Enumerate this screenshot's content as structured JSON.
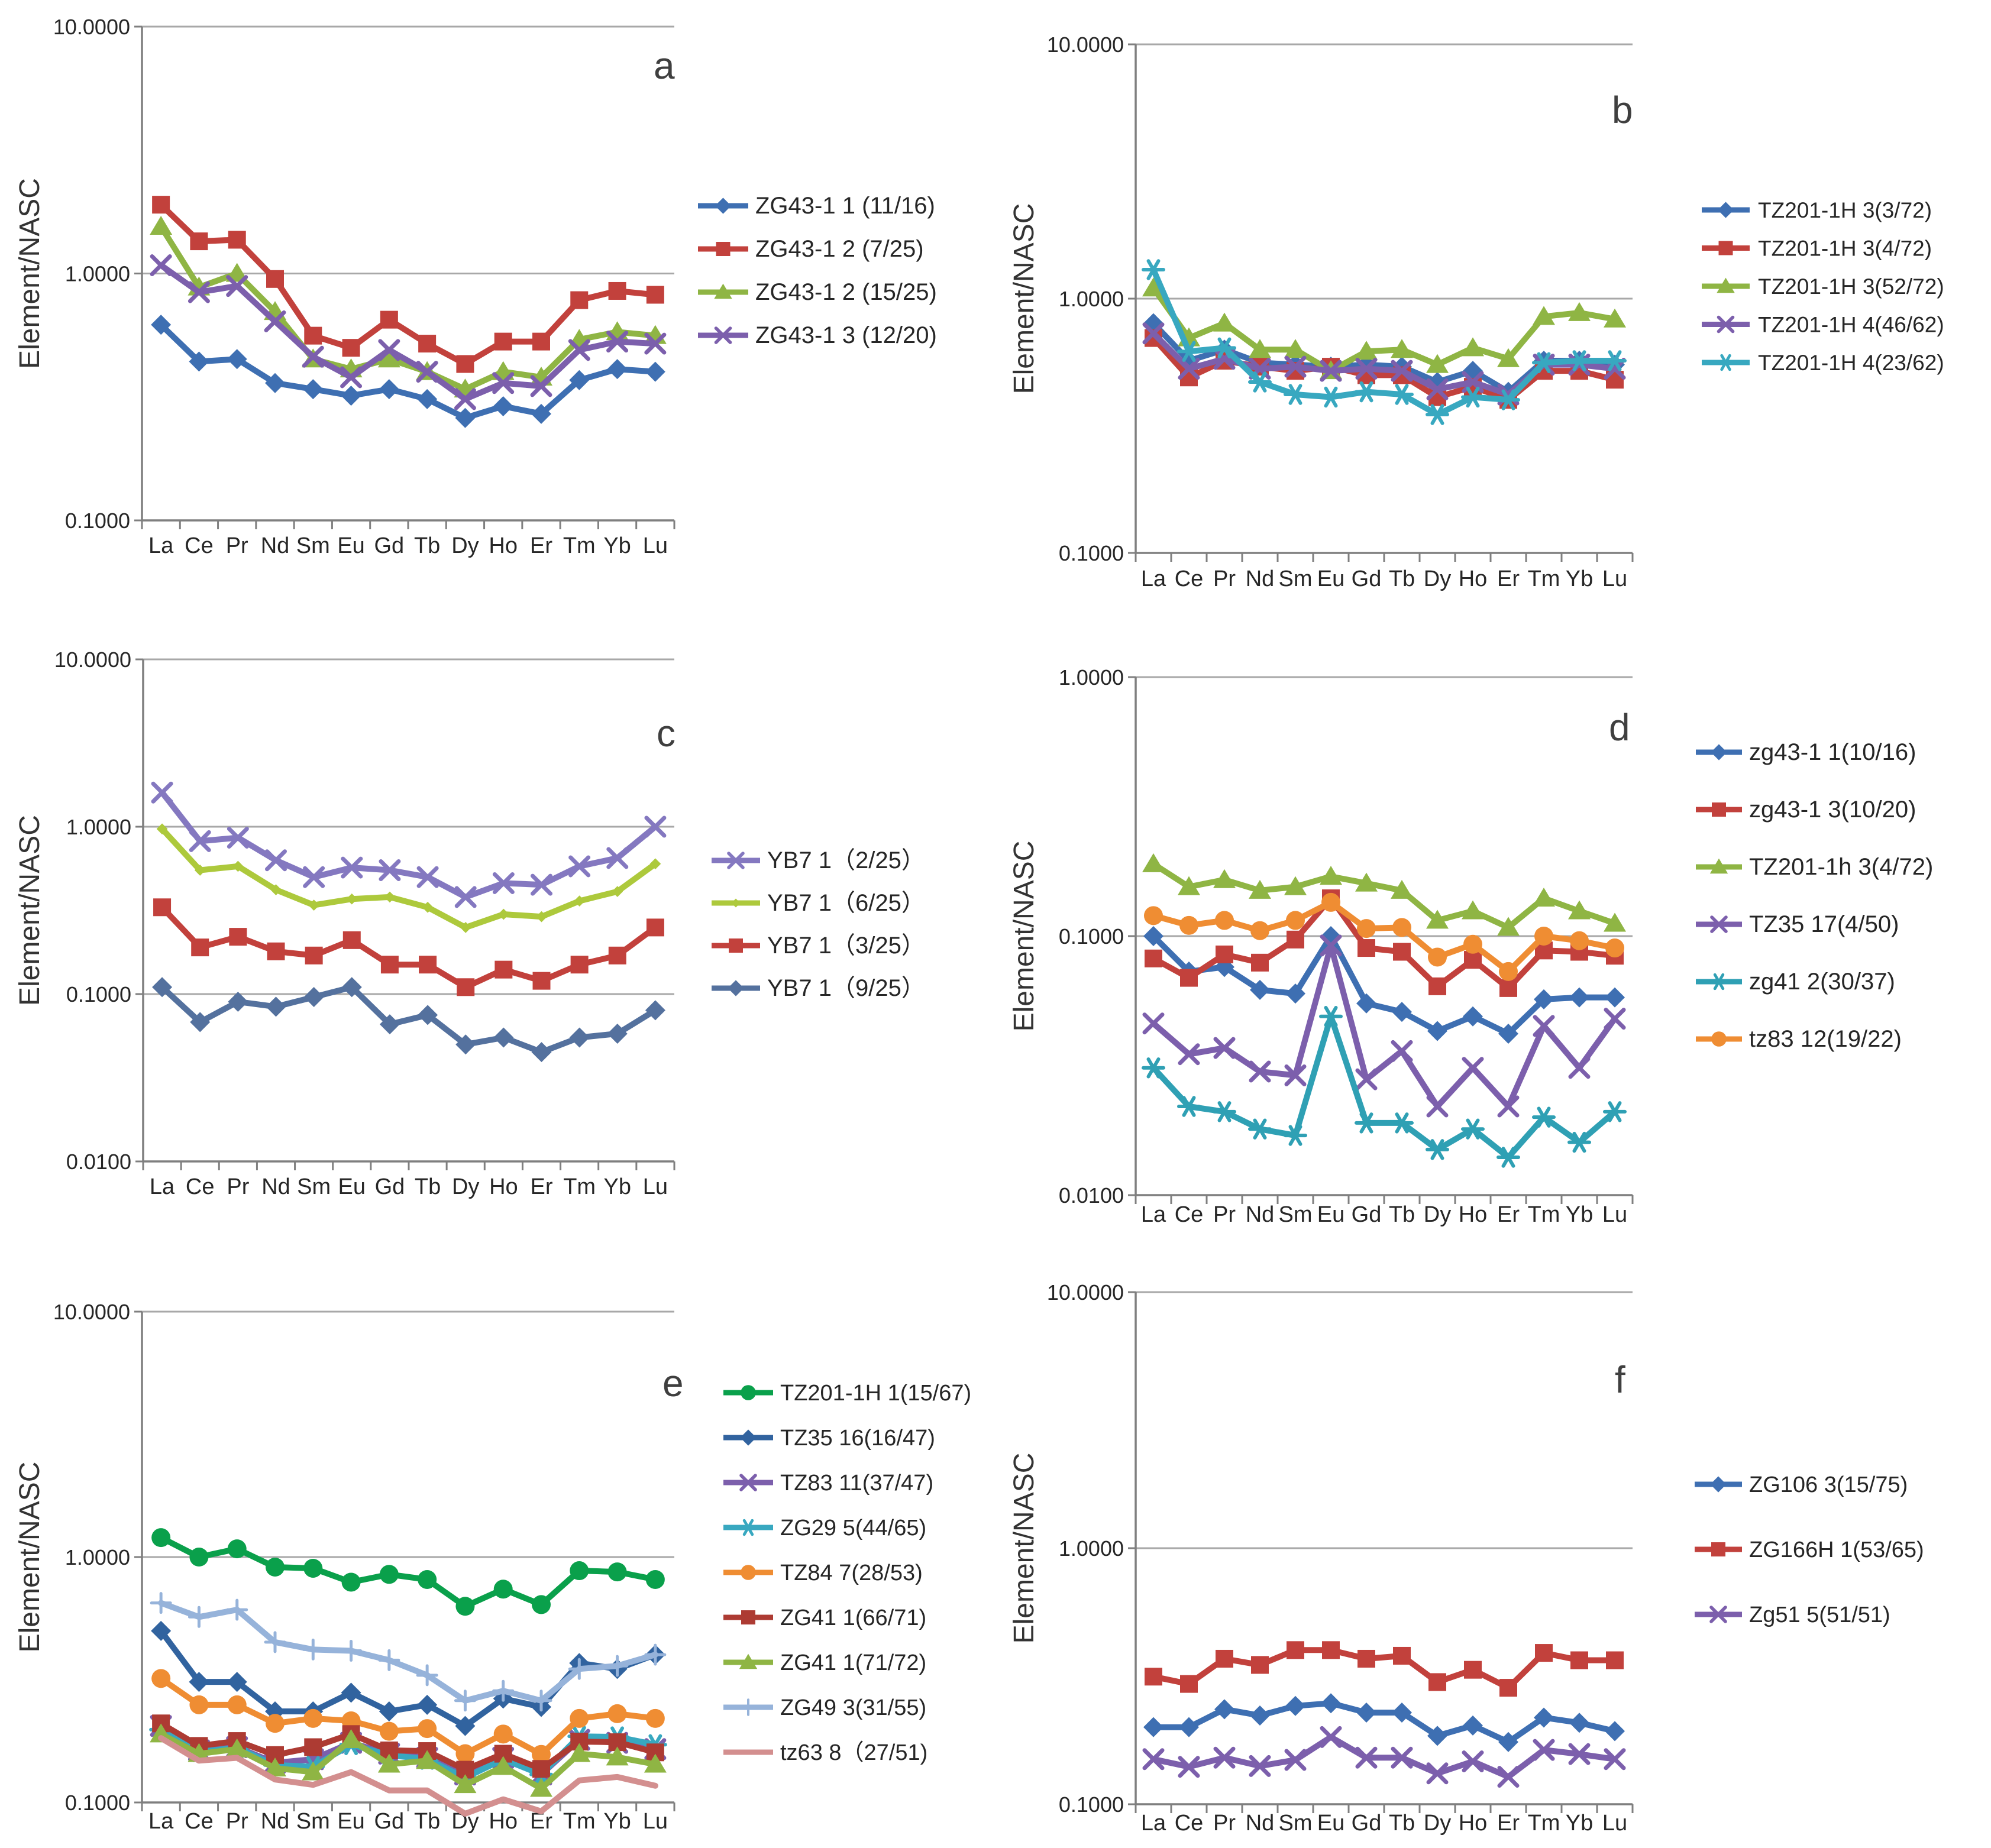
{
  "figure": {
    "background": "#ffffff",
    "ylabel": "Element/NASC",
    "x_categories": [
      "La",
      "Ce",
      "Pr",
      "Nd",
      "Sm",
      "Eu",
      "Gd",
      "Tb",
      "Dy",
      "Ho",
      "Er",
      "Tm",
      "Yb",
      "Lu"
    ]
  },
  "chart_data": [
    {
      "id": "a",
      "type": "line",
      "panel_label": "a",
      "ylabel": "Element/NASC",
      "xlabel": "",
      "yscale": "log",
      "ylim": [
        0.1,
        10
      ],
      "grid": "horizontal-decades",
      "legend_position": "right",
      "x_categories": [
        "La",
        "Ce",
        "Pr",
        "Nd",
        "Sm",
        "Eu",
        "Gd",
        "Tb",
        "Dy",
        "Ho",
        "Er",
        "Tm",
        "Yb",
        "Lu"
      ],
      "yticks": [
        {
          "value": 10,
          "label": "10.0000"
        },
        {
          "value": 1,
          "label": "1.0000"
        },
        {
          "value": 0.1,
          "label": "0.1000"
        }
      ],
      "series": [
        {
          "name": "ZG43-1  1 (11/16)",
          "color": "#3E6FB2",
          "marker": "diamond",
          "values": [
            0.62,
            0.44,
            0.45,
            0.36,
            0.34,
            0.32,
            0.34,
            0.31,
            0.26,
            0.29,
            0.27,
            0.37,
            0.41,
            0.4
          ]
        },
        {
          "name": "ZG43-1  2 (7/25)",
          "color": "#C2413C",
          "marker": "square",
          "values": [
            1.9,
            1.35,
            1.37,
            0.95,
            0.56,
            0.5,
            0.65,
            0.52,
            0.43,
            0.53,
            0.53,
            0.78,
            0.85,
            0.82
          ]
        },
        {
          "name": "ZG43-1  2 (15/25)",
          "color": "#8FB544",
          "marker": "triangle",
          "values": [
            1.55,
            0.88,
            1.0,
            0.7,
            0.45,
            0.41,
            0.45,
            0.4,
            0.34,
            0.4,
            0.38,
            0.54,
            0.58,
            0.56
          ]
        },
        {
          "name": "ZG43-1  3 (12/20)",
          "color": "#7C5FAC",
          "marker": "x",
          "values": [
            1.08,
            0.84,
            0.89,
            0.64,
            0.46,
            0.38,
            0.49,
            0.4,
            0.31,
            0.36,
            0.35,
            0.49,
            0.53,
            0.52
          ]
        }
      ]
    },
    {
      "id": "b",
      "type": "line",
      "panel_label": "b",
      "ylabel": "Element/NASC",
      "xlabel": "",
      "yscale": "log",
      "ylim": [
        0.1,
        10
      ],
      "grid": "horizontal-decades",
      "legend_position": "right",
      "x_categories": [
        "La",
        "Ce",
        "Pr",
        "Nd",
        "Sm",
        "Eu",
        "Gd",
        "Tb",
        "Dy",
        "Ho",
        "Er",
        "Tm",
        "Yb",
        "Lu"
      ],
      "yticks": [
        {
          "value": 10,
          "label": "10.0000"
        },
        {
          "value": 1,
          "label": "1.0000"
        },
        {
          "value": 0.1,
          "label": "0.1000"
        }
      ],
      "series": [
        {
          "name": "TZ201-1H 3(3/72)",
          "color": "#3E6FB2",
          "marker": "diamond",
          "values": [
            0.8,
            0.57,
            0.63,
            0.56,
            0.55,
            0.54,
            0.55,
            0.54,
            0.47,
            0.52,
            0.43,
            0.57,
            0.57,
            0.55
          ]
        },
        {
          "name": "TZ201-1H 3(4/72)",
          "color": "#C2413C",
          "marker": "square",
          "values": [
            0.7,
            0.49,
            0.57,
            0.54,
            0.52,
            0.54,
            0.5,
            0.5,
            0.41,
            0.45,
            0.4,
            0.52,
            0.52,
            0.48
          ]
        },
        {
          "name": "TZ201-1H 3(52/72)",
          "color": "#8FB544",
          "marker": "triangle",
          "values": [
            1.1,
            0.7,
            0.8,
            0.63,
            0.63,
            0.52,
            0.62,
            0.63,
            0.55,
            0.64,
            0.58,
            0.85,
            0.88,
            0.83
          ]
        },
        {
          "name": "TZ201-1H 4(46/62)",
          "color": "#7C5FAC",
          "marker": "x",
          "values": [
            0.73,
            0.53,
            0.58,
            0.53,
            0.54,
            0.52,
            0.53,
            0.52,
            0.44,
            0.47,
            0.42,
            0.55,
            0.55,
            0.53
          ]
        },
        {
          "name": "TZ201-1H 4(23/62)",
          "color": "#38A8C0",
          "marker": "asterisk",
          "values": [
            1.3,
            0.62,
            0.64,
            0.47,
            0.42,
            0.41,
            0.43,
            0.42,
            0.35,
            0.41,
            0.4,
            0.56,
            0.57,
            0.57
          ]
        }
      ]
    },
    {
      "id": "c",
      "type": "line",
      "panel_label": "c",
      "ylabel": "Element/NASC",
      "xlabel": "",
      "yscale": "log",
      "ylim": [
        0.01,
        10
      ],
      "grid": "horizontal-decades",
      "legend_position": "right",
      "x_categories": [
        "La",
        "Ce",
        "Pr",
        "Nd",
        "Sm",
        "Eu",
        "Gd",
        "Tb",
        "Dy",
        "Ho",
        "Er",
        "Tm",
        "Yb",
        "Lu"
      ],
      "yticks": [
        {
          "value": 10,
          "label": "10.0000"
        },
        {
          "value": 1,
          "label": "1.0000"
        },
        {
          "value": 0.1,
          "label": "0.1000"
        },
        {
          "value": 0.01,
          "label": "0.0100"
        }
      ],
      "series": [
        {
          "name": "YB7 1（2/25）",
          "color": "#8478C0",
          "marker": "x",
          "values": [
            1.6,
            0.82,
            0.86,
            0.63,
            0.5,
            0.57,
            0.55,
            0.5,
            0.38,
            0.46,
            0.45,
            0.58,
            0.65,
            1.0
          ]
        },
        {
          "name": "YB7 1（6/25）",
          "color": "#ADC93C",
          "marker": "diamond",
          "marker_scale": 0.55,
          "values": [
            0.97,
            0.55,
            0.58,
            0.42,
            0.34,
            0.37,
            0.38,
            0.33,
            0.25,
            0.3,
            0.29,
            0.36,
            0.41,
            0.6
          ]
        },
        {
          "name": "YB7 1（3/25）",
          "color": "#C2413C",
          "marker": "square",
          "values": [
            0.33,
            0.19,
            0.22,
            0.18,
            0.17,
            0.21,
            0.15,
            0.15,
            0.11,
            0.14,
            0.12,
            0.15,
            0.17,
            0.25
          ]
        },
        {
          "name": "YB7 1（9/25）",
          "color": "#54719E",
          "marker": "diamond",
          "values": [
            0.11,
            0.068,
            0.09,
            0.084,
            0.096,
            0.11,
            0.066,
            0.075,
            0.05,
            0.055,
            0.045,
            0.055,
            0.058,
            0.08
          ]
        }
      ]
    },
    {
      "id": "d",
      "type": "line",
      "panel_label": "d",
      "ylabel": "Element/NASC",
      "xlabel": "",
      "yscale": "log",
      "ylim": [
        0.01,
        1
      ],
      "grid": "horizontal-decades",
      "legend_position": "right",
      "x_categories": [
        "La",
        "Ce",
        "Pr",
        "Nd",
        "Sm",
        "Eu",
        "Gd",
        "Tb",
        "Dy",
        "Ho",
        "Er",
        "Tm",
        "Yb",
        "Lu"
      ],
      "yticks": [
        {
          "value": 1,
          "label": "1.0000"
        },
        {
          "value": 0.1,
          "label": "0.1000"
        },
        {
          "value": 0.01,
          "label": "0.0100"
        }
      ],
      "series": [
        {
          "name": "zg43-1 1(10/16)",
          "color": "#3E6FB2",
          "marker": "diamond",
          "values": [
            0.1,
            0.073,
            0.076,
            0.062,
            0.06,
            0.1,
            0.055,
            0.051,
            0.043,
            0.049,
            0.042,
            0.057,
            0.058,
            0.058
          ]
        },
        {
          "name": "zg43-1 3(10/20)",
          "color": "#C2413C",
          "marker": "square",
          "values": [
            0.082,
            0.069,
            0.085,
            0.079,
            0.097,
            0.14,
            0.09,
            0.087,
            0.064,
            0.081,
            0.063,
            0.088,
            0.087,
            0.084
          ]
        },
        {
          "name": "TZ201-1h 3(4/72)",
          "color": "#8FB544",
          "marker": "triangle",
          "values": [
            0.19,
            0.155,
            0.165,
            0.15,
            0.155,
            0.17,
            0.16,
            0.15,
            0.115,
            0.125,
            0.108,
            0.14,
            0.125,
            0.112
          ]
        },
        {
          "name": "TZ35 17(4/50)",
          "color": "#7C5FAC",
          "marker": "x",
          "values": [
            0.046,
            0.035,
            0.037,
            0.03,
            0.029,
            0.092,
            0.028,
            0.036,
            0.022,
            0.031,
            0.022,
            0.045,
            0.031,
            0.048
          ]
        },
        {
          "name": "zg41 2(30/37)",
          "color": "#2FA0B4",
          "marker": "asterisk",
          "values": [
            0.031,
            0.022,
            0.021,
            0.018,
            0.017,
            0.049,
            0.019,
            0.019,
            0.015,
            0.018,
            0.014,
            0.02,
            0.016,
            0.021
          ]
        },
        {
          "name": "tz83 12(19/22)",
          "color": "#EF8D33",
          "marker": "circle",
          "values": [
            0.12,
            0.11,
            0.115,
            0.105,
            0.115,
            0.135,
            0.107,
            0.108,
            0.083,
            0.093,
            0.073,
            0.1,
            0.096,
            0.09
          ]
        }
      ]
    },
    {
      "id": "e",
      "type": "line",
      "panel_label": "e",
      "ylabel": "Element/NASC",
      "xlabel": "",
      "yscale": "log",
      "ylim": [
        0.1,
        10
      ],
      "grid": "horizontal-decades",
      "legend_position": "right",
      "x_categories": [
        "La",
        "Ce",
        "Pr",
        "Nd",
        "Sm",
        "Eu",
        "Gd",
        "Tb",
        "Dy",
        "Ho",
        "Er",
        "Tm",
        "Yb",
        "Lu"
      ],
      "yticks": [
        {
          "value": 10,
          "label": "10.0000"
        },
        {
          "value": 1,
          "label": "1.0000"
        },
        {
          "value": 0.1,
          "label": "0.1000"
        }
      ],
      "series": [
        {
          "name": "TZ201-1H 1(15/67)",
          "color": "#0AA04B",
          "marker": "circle",
          "values": [
            1.2,
            1.0,
            1.08,
            0.91,
            0.9,
            0.79,
            0.85,
            0.81,
            0.63,
            0.74,
            0.64,
            0.88,
            0.87,
            0.81
          ]
        },
        {
          "name": "TZ35 16(16/47)",
          "color": "#31639F",
          "marker": "diamond",
          "values": [
            0.5,
            0.31,
            0.31,
            0.235,
            0.235,
            0.28,
            0.235,
            0.25,
            0.205,
            0.265,
            0.245,
            0.37,
            0.35,
            0.4
          ]
        },
        {
          "name": "TZ83 11(37/47)",
          "color": "#7C5FAC",
          "marker": "x",
          "values": [
            0.205,
            0.163,
            0.168,
            0.145,
            0.15,
            0.175,
            0.158,
            0.152,
            0.13,
            0.152,
            0.13,
            0.18,
            0.175,
            0.165
          ]
        },
        {
          "name": "ZG29 5(44/65)",
          "color": "#38A8C0",
          "marker": "asterisk",
          "values": [
            0.198,
            0.161,
            0.167,
            0.142,
            0.14,
            0.172,
            0.156,
            0.15,
            0.126,
            0.15,
            0.13,
            0.186,
            0.185,
            0.172
          ]
        },
        {
          "name": "TZ84 7(28/53)",
          "color": "#EF8D33",
          "marker": "circle",
          "values": [
            0.32,
            0.25,
            0.25,
            0.21,
            0.22,
            0.215,
            0.195,
            0.2,
            0.158,
            0.19,
            0.157,
            0.22,
            0.23,
            0.22
          ]
        },
        {
          "name": "ZG41 1(66/71)",
          "color": "#AD3B33",
          "marker": "square",
          "values": [
            0.21,
            0.17,
            0.178,
            0.156,
            0.168,
            0.19,
            0.163,
            0.162,
            0.136,
            0.158,
            0.137,
            0.177,
            0.176,
            0.16
          ]
        },
        {
          "name": "ZG41 1(71/72)",
          "color": "#8FB544",
          "marker": "triangle",
          "values": [
            0.19,
            0.158,
            0.165,
            0.138,
            0.133,
            0.18,
            0.143,
            0.148,
            0.118,
            0.14,
            0.114,
            0.158,
            0.153,
            0.143
          ]
        },
        {
          "name": "ZG49 3(31/55)",
          "color": "#96B3DA",
          "marker": "plus",
          "values": [
            0.65,
            0.57,
            0.61,
            0.45,
            0.42,
            0.415,
            0.38,
            0.33,
            0.26,
            0.285,
            0.26,
            0.35,
            0.36,
            0.4
          ]
        },
        {
          "name": "tz63 8（27/51)",
          "color": "#D38F8F",
          "marker": "none",
          "values": [
            0.183,
            0.148,
            0.152,
            0.124,
            0.118,
            0.133,
            0.112,
            0.112,
            0.09,
            0.103,
            0.092,
            0.123,
            0.127,
            0.117
          ]
        }
      ]
    },
    {
      "id": "f",
      "type": "line",
      "panel_label": "f",
      "ylabel": "Element/NASC",
      "xlabel": "",
      "yscale": "log",
      "ylim": [
        0.1,
        10
      ],
      "grid": "horizontal-decades",
      "legend_position": "right",
      "x_categories": [
        "La",
        "Ce",
        "Pr",
        "Nd",
        "Sm",
        "Eu",
        "Gd",
        "Tb",
        "Dy",
        "Ho",
        "Er",
        "Tm",
        "Yb",
        "Lu"
      ],
      "yticks": [
        {
          "value": 10,
          "label": "10.0000"
        },
        {
          "value": 1,
          "label": "1.0000"
        },
        {
          "value": 0.1,
          "label": "0.1000"
        }
      ],
      "series": [
        {
          "name": "ZG106 3(15/75)",
          "color": "#3E6FB2",
          "marker": "diamond",
          "values": [
            0.2,
            0.2,
            0.235,
            0.222,
            0.242,
            0.248,
            0.228,
            0.228,
            0.185,
            0.203,
            0.175,
            0.218,
            0.208,
            0.193
          ]
        },
        {
          "name": "ZG166H 1(53/65)",
          "color": "#C2413C",
          "marker": "square",
          "values": [
            0.315,
            0.295,
            0.37,
            0.35,
            0.4,
            0.4,
            0.37,
            0.38,
            0.3,
            0.335,
            0.285,
            0.39,
            0.365,
            0.365
          ]
        },
        {
          "name": "Zg51 5(51/51)",
          "color": "#7C5FAC",
          "marker": "x",
          "values": [
            0.15,
            0.14,
            0.152,
            0.141,
            0.149,
            0.183,
            0.152,
            0.152,
            0.132,
            0.147,
            0.128,
            0.163,
            0.157,
            0.15
          ]
        }
      ]
    }
  ]
}
